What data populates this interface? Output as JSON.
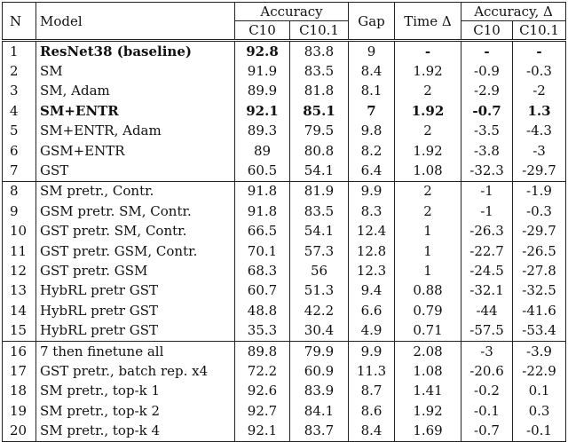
{
  "headers": {
    "n": "N",
    "model": "Model",
    "accuracy": "Accuracy",
    "gap": "Gap",
    "time_delta": "Time Δ",
    "accuracy_delta": "Accuracy, Δ",
    "c10": "C10",
    "c101": "C10.1"
  },
  "groups": [
    [
      {
        "n": "1",
        "model": "ResNet38 (baseline)",
        "acc_c10": "92.8",
        "acc_c101": "83.8",
        "gap": "9",
        "time": "-",
        "d_c10": "-",
        "d_c101": "-",
        "bold": [
          "model",
          "acc_c10",
          "time",
          "d_c10",
          "d_c101"
        ]
      },
      {
        "n": "2",
        "model": "SM",
        "acc_c10": "91.9",
        "acc_c101": "83.5",
        "gap": "8.4",
        "time": "1.92",
        "d_c10": "-0.9",
        "d_c101": "-0.3",
        "bold": []
      },
      {
        "n": "3",
        "model": "SM, Adam",
        "acc_c10": "89.9",
        "acc_c101": "81.8",
        "gap": "8.1",
        "time": "2",
        "d_c10": "-2.9",
        "d_c101": "-2",
        "bold": []
      },
      {
        "n": "4",
        "model": "SM+ENTR",
        "acc_c10": "92.1",
        "acc_c101": "85.1",
        "gap": "7",
        "time": "1.92",
        "d_c10": "-0.7",
        "d_c101": "1.3",
        "bold": [
          "model",
          "acc_c10",
          "acc_c101",
          "gap",
          "time",
          "d_c10",
          "d_c101"
        ]
      },
      {
        "n": "5",
        "model": "SM+ENTR, Adam",
        "acc_c10": "89.3",
        "acc_c101": "79.5",
        "gap": "9.8",
        "time": "2",
        "d_c10": "-3.5",
        "d_c101": "-4.3",
        "bold": []
      },
      {
        "n": "6",
        "model": "GSM+ENTR",
        "acc_c10": "89",
        "acc_c101": "80.8",
        "gap": "8.2",
        "time": "1.92",
        "d_c10": "-3.8",
        "d_c101": "-3",
        "bold": []
      },
      {
        "n": "7",
        "model": "GST",
        "acc_c10": "60.5",
        "acc_c101": "54.1",
        "gap": "6.4",
        "time": "1.08",
        "d_c10": "-32.3",
        "d_c101": "-29.7",
        "bold": []
      }
    ],
    [
      {
        "n": "8",
        "model": "SM pretr., Contr.",
        "acc_c10": "91.8",
        "acc_c101": "81.9",
        "gap": "9.9",
        "time": "2",
        "d_c10": "-1",
        "d_c101": "-1.9",
        "bold": []
      },
      {
        "n": "9",
        "model": "GSM pretr. SM, Contr.",
        "acc_c10": "91.8",
        "acc_c101": "83.5",
        "gap": "8.3",
        "time": "2",
        "d_c10": "-1",
        "d_c101": "-0.3",
        "bold": []
      },
      {
        "n": "10",
        "model": "GST pretr. SM, Contr.",
        "acc_c10": "66.5",
        "acc_c101": "54.1",
        "gap": "12.4",
        "time": "1",
        "d_c10": "-26.3",
        "d_c101": "-29.7",
        "bold": []
      },
      {
        "n": "11",
        "model": "GST pretr. GSM, Contr.",
        "acc_c10": "70.1",
        "acc_c101": "57.3",
        "gap": "12.8",
        "time": "1",
        "d_c10": "-22.7",
        "d_c101": "-26.5",
        "bold": []
      },
      {
        "n": "12",
        "model": "GST pretr. GSM",
        "acc_c10": "68.3",
        "acc_c101": "56",
        "gap": "12.3",
        "time": "1",
        "d_c10": "-24.5",
        "d_c101": "-27.8",
        "bold": []
      },
      {
        "n": "13",
        "model": "HybRL pretr GST",
        "acc_c10": "60.7",
        "acc_c101": "51.3",
        "gap": "9.4",
        "time": "0.88",
        "d_c10": "-32.1",
        "d_c101": "-32.5",
        "bold": []
      },
      {
        "n": "14",
        "model": "HybRL pretr GST",
        "acc_c10": "48.8",
        "acc_c101": "42.2",
        "gap": "6.6",
        "time": "0.79",
        "d_c10": "-44",
        "d_c101": "-41.6",
        "bold": []
      },
      {
        "n": "15",
        "model": "HybRL pretr GST",
        "acc_c10": "35.3",
        "acc_c101": "30.4",
        "gap": "4.9",
        "time": "0.71",
        "d_c10": "-57.5",
        "d_c101": "-53.4",
        "bold": []
      }
    ],
    [
      {
        "n": "16",
        "model": "7 then finetune all",
        "acc_c10": "89.8",
        "acc_c101": "79.9",
        "gap": "9.9",
        "time": "2.08",
        "d_c10": "-3",
        "d_c101": "-3.9",
        "bold": []
      },
      {
        "n": "17",
        "model": "GST pretr., batch rep. x4",
        "acc_c10": "72.2",
        "acc_c101": "60.9",
        "gap": "11.3",
        "time": "1.08",
        "d_c10": "-20.6",
        "d_c101": "-22.9",
        "bold": []
      },
      {
        "n": "18",
        "model": "SM pretr., top-k 1",
        "acc_c10": "92.6",
        "acc_c101": "83.9",
        "gap": "8.7",
        "time": "1.41",
        "d_c10": "-0.2",
        "d_c101": "0.1",
        "bold": []
      },
      {
        "n": "19",
        "model": "SM pretr., top-k 2",
        "acc_c10": "92.7",
        "acc_c101": "84.1",
        "gap": "8.6",
        "time": "1.92",
        "d_c10": "-0.1",
        "d_c101": "0.3",
        "bold": []
      },
      {
        "n": "20",
        "model": "SM pretr., top-k 4",
        "acc_c10": "92.1",
        "acc_c101": "83.7",
        "gap": "8.4",
        "time": "1.69",
        "d_c10": "-0.7",
        "d_c101": "-0.1",
        "bold": []
      }
    ]
  ]
}
